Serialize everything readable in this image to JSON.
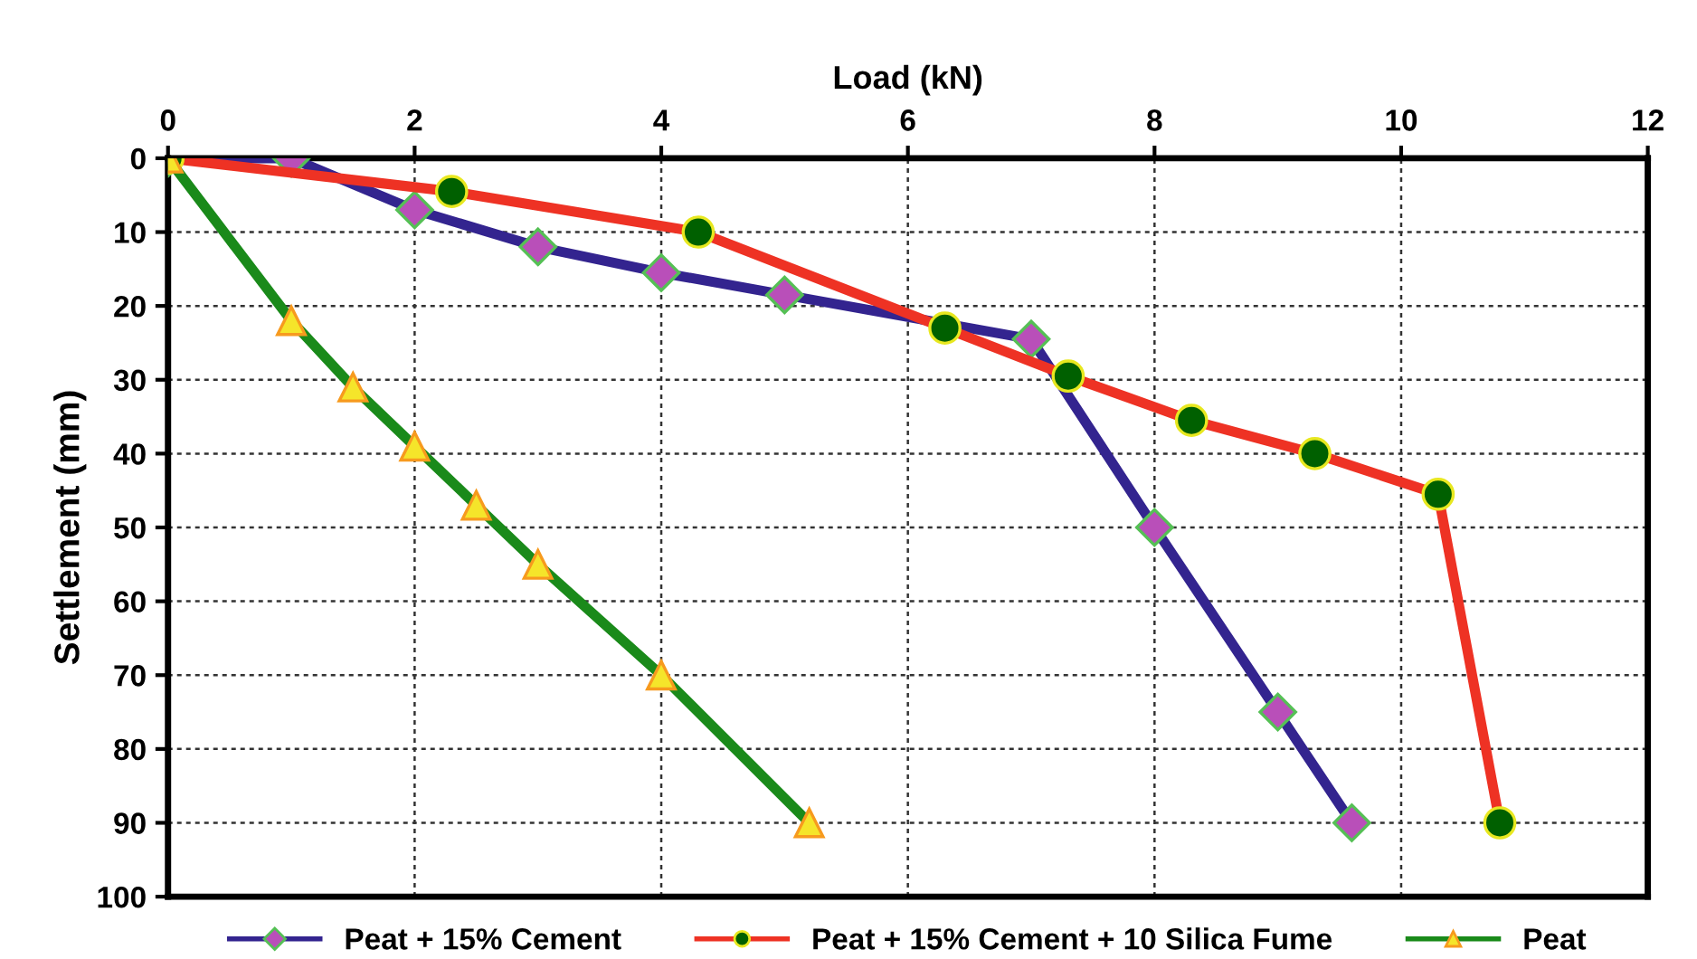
{
  "chart_data": {
    "type": "line",
    "xlabel": "Load (kN)",
    "ylabel": "Settlement (mm)",
    "xlim": [
      0,
      12
    ],
    "xticks": [
      0,
      2,
      4,
      6,
      8,
      10,
      12
    ],
    "ylim": [
      100,
      0
    ],
    "yticks": [
      0,
      10,
      20,
      30,
      40,
      50,
      60,
      70,
      80,
      90,
      100
    ],
    "grid": true,
    "legend": "bottom",
    "series": [
      {
        "name": "Peat + 15% Cement",
        "color": "#33248f",
        "marker": "diamond",
        "x": [
          0,
          1,
          2,
          3,
          4,
          5,
          7,
          8,
          9,
          9.6
        ],
        "values": [
          0,
          0,
          7,
          12,
          15.5,
          18.5,
          24.5,
          50,
          75,
          90
        ]
      },
      {
        "name": "Peat + 15% Cement + 10 Silica Fume",
        "color": "#ee3224",
        "marker": "circle",
        "x": [
          0,
          2.3,
          4.3,
          6.3,
          7.3,
          8.3,
          9.3,
          10.3,
          10.8
        ],
        "values": [
          0,
          4.5,
          10,
          23,
          29.5,
          35.5,
          40,
          45.5,
          90
        ]
      },
      {
        "name": "Peat",
        "color": "#1a8a1a",
        "marker": "triangle",
        "x": [
          0,
          1,
          1.5,
          2,
          2.5,
          3,
          4,
          5.2
        ],
        "values": [
          0,
          22,
          31,
          39,
          47,
          55,
          70,
          90
        ]
      }
    ]
  }
}
